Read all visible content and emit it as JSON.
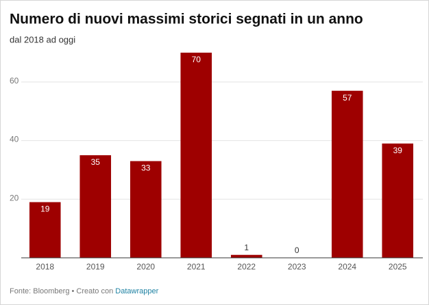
{
  "chart_data": {
    "type": "bar",
    "title": "Numero di nuovi massimi storici segnati in un anno",
    "subtitle": "dal 2018 ad oggi",
    "categories": [
      "2018",
      "2019",
      "2020",
      "2021",
      "2022",
      "2023",
      "2024",
      "2025"
    ],
    "values": [
      19,
      35,
      33,
      70,
      1,
      0,
      57,
      39
    ],
    "color": "#9e0000",
    "ylim": [
      0,
      70
    ],
    "yticks": [
      20,
      40,
      60
    ],
    "grid": true,
    "source": "Fonte: Bloomberg • Creato con",
    "source_link": "Datawrapper"
  }
}
